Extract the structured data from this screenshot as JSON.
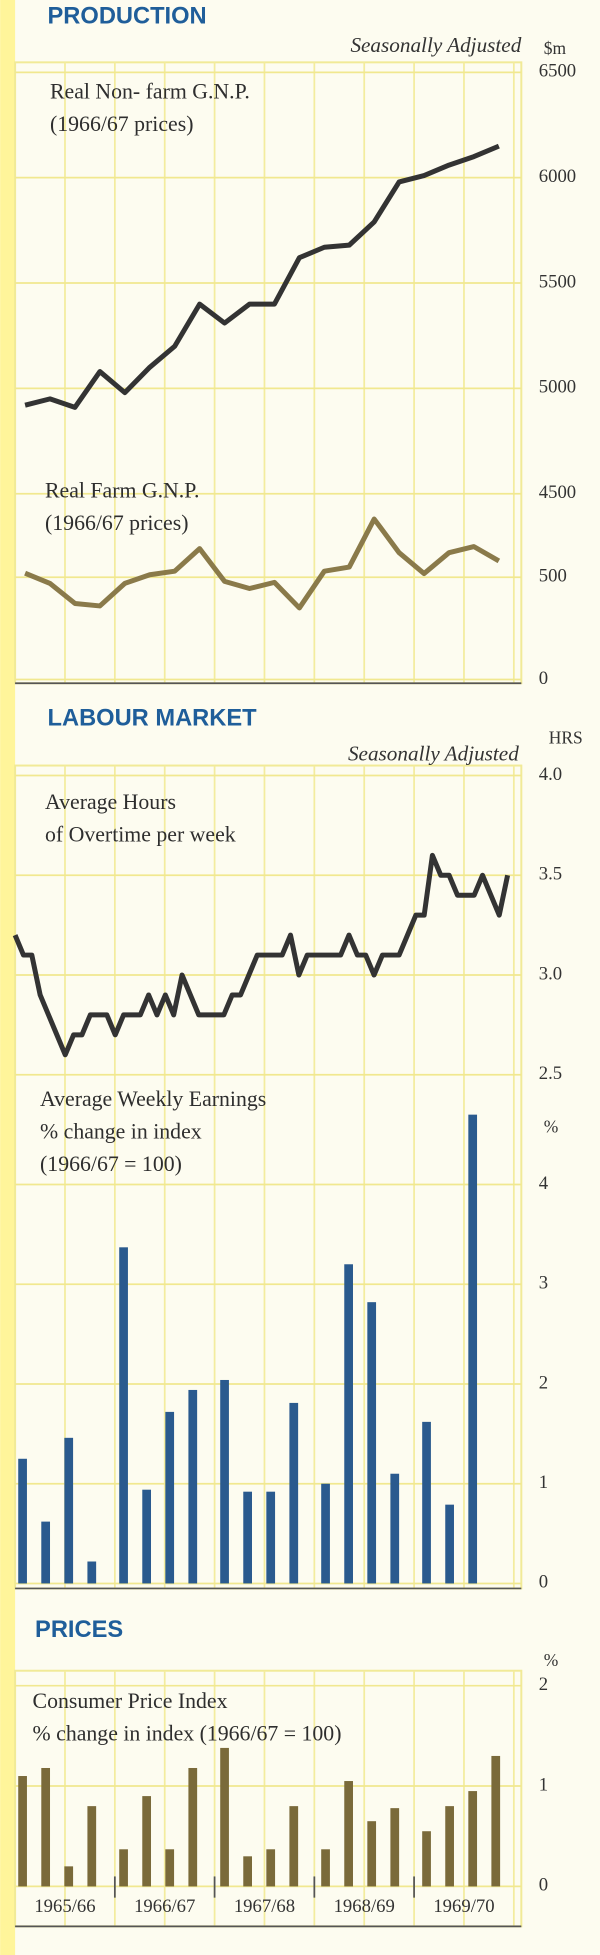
{
  "sections": [
    {
      "title": "PRODUCTION",
      "subtitle": "Seasonally Adjusted"
    },
    {
      "title": "LABOUR MARKET",
      "subtitle": "Seasonally Adjusted"
    },
    {
      "title": "PRICES"
    }
  ],
  "periods": [
    "1965/66",
    "1966/67",
    "1967/68",
    "1968/69",
    "1969/70"
  ],
  "chart_data": [
    {
      "type": "line",
      "title_lines": [
        "Real Non- farm G.N.P.",
        "(1966/67 prices)"
      ],
      "unit": "$m",
      "color": "#333333",
      "values": [
        4920,
        4950,
        4910,
        5080,
        4980,
        5100,
        5200,
        5400,
        5310,
        5400,
        5400,
        5620,
        5670,
        5680,
        5790,
        5980,
        6010,
        6060,
        6100,
        6150
      ],
      "ylim": [
        4500,
        6500
      ],
      "yticks": [
        4500,
        5000,
        5500,
        6000,
        6500
      ],
      "grid": true
    },
    {
      "type": "line",
      "title_lines": [
        "Real Farm G.N.P.",
        "(1966/67 prices)"
      ],
      "color": "#8a7a4a",
      "values": [
        520,
        470,
        372,
        360,
        470,
        512,
        530,
        640,
        480,
        445,
        475,
        350,
        530,
        550,
        785,
        620,
        518,
        620,
        650,
        580
      ],
      "ylim": [
        0,
        1000
      ],
      "yticks": [
        0,
        500
      ],
      "grid": true
    },
    {
      "type": "line",
      "title_lines": [
        "Average Hours",
        "of Overtime per week"
      ],
      "unit": "HRS",
      "color": "#333333",
      "values": [
        3.2,
        3.1,
        3.1,
        2.9,
        2.8,
        2.7,
        2.6,
        2.7,
        2.7,
        2.8,
        2.8,
        2.8,
        2.7,
        2.8,
        2.8,
        2.8,
        2.9,
        2.8,
        2.9,
        2.8,
        3.0,
        2.9,
        2.8,
        2.8,
        2.8,
        2.8,
        2.9,
        2.9,
        3.0,
        3.1,
        3.1,
        3.1,
        3.1,
        3.2,
        3.0,
        3.1,
        3.1,
        3.1,
        3.1,
        3.1,
        3.2,
        3.1,
        3.1,
        3.0,
        3.1,
        3.1,
        3.1,
        3.2,
        3.3,
        3.3,
        3.6,
        3.5,
        3.5,
        3.4,
        3.4,
        3.4,
        3.5,
        3.4,
        3.3,
        3.5
      ],
      "ylim": [
        2.5,
        4.0
      ],
      "yticks": [
        {
          "value": 2.5,
          "label": "2.5"
        },
        {
          "value": 3,
          "label": "3.0"
        },
        {
          "value": 3.5,
          "label": "3.5"
        },
        {
          "value": 4,
          "label": "4.0"
        }
      ],
      "grid": true
    },
    {
      "type": "bar",
      "title_lines": [
        "Average Weekly Earnings",
        "% change in index",
        "(1966/67 = 100)"
      ],
      "unit": "%",
      "color": "#2a5a8e",
      "values": [
        1.25,
        0.62,
        1.46,
        0.22,
        3.37,
        0.94,
        1.72,
        1.94,
        2.04,
        0.92,
        0.92,
        1.81,
        1.0,
        3.2,
        2.82,
        1.1,
        1.62,
        0.79,
        4.7
      ],
      "ylim": [
        0,
        5
      ],
      "yticks": [
        0,
        1,
        2,
        3,
        4
      ],
      "grid": true
    },
    {
      "type": "bar",
      "title_lines": [
        "Consumer Price Index",
        "% change in index  (1966/67 = 100)"
      ],
      "unit": "%",
      "color": "#7a6a3a",
      "values": [
        1.1,
        1.18,
        0.2,
        0.8,
        0.37,
        0.9,
        0.37,
        1.18,
        1.38,
        0.3,
        0.37,
        0.8,
        0.37,
        1.05,
        0.65,
        0.78,
        0.55,
        0.8,
        0.95,
        1.3
      ],
      "ylim": [
        0,
        2
      ],
      "yticks": [
        0,
        1,
        2
      ],
      "grid": true
    }
  ]
}
